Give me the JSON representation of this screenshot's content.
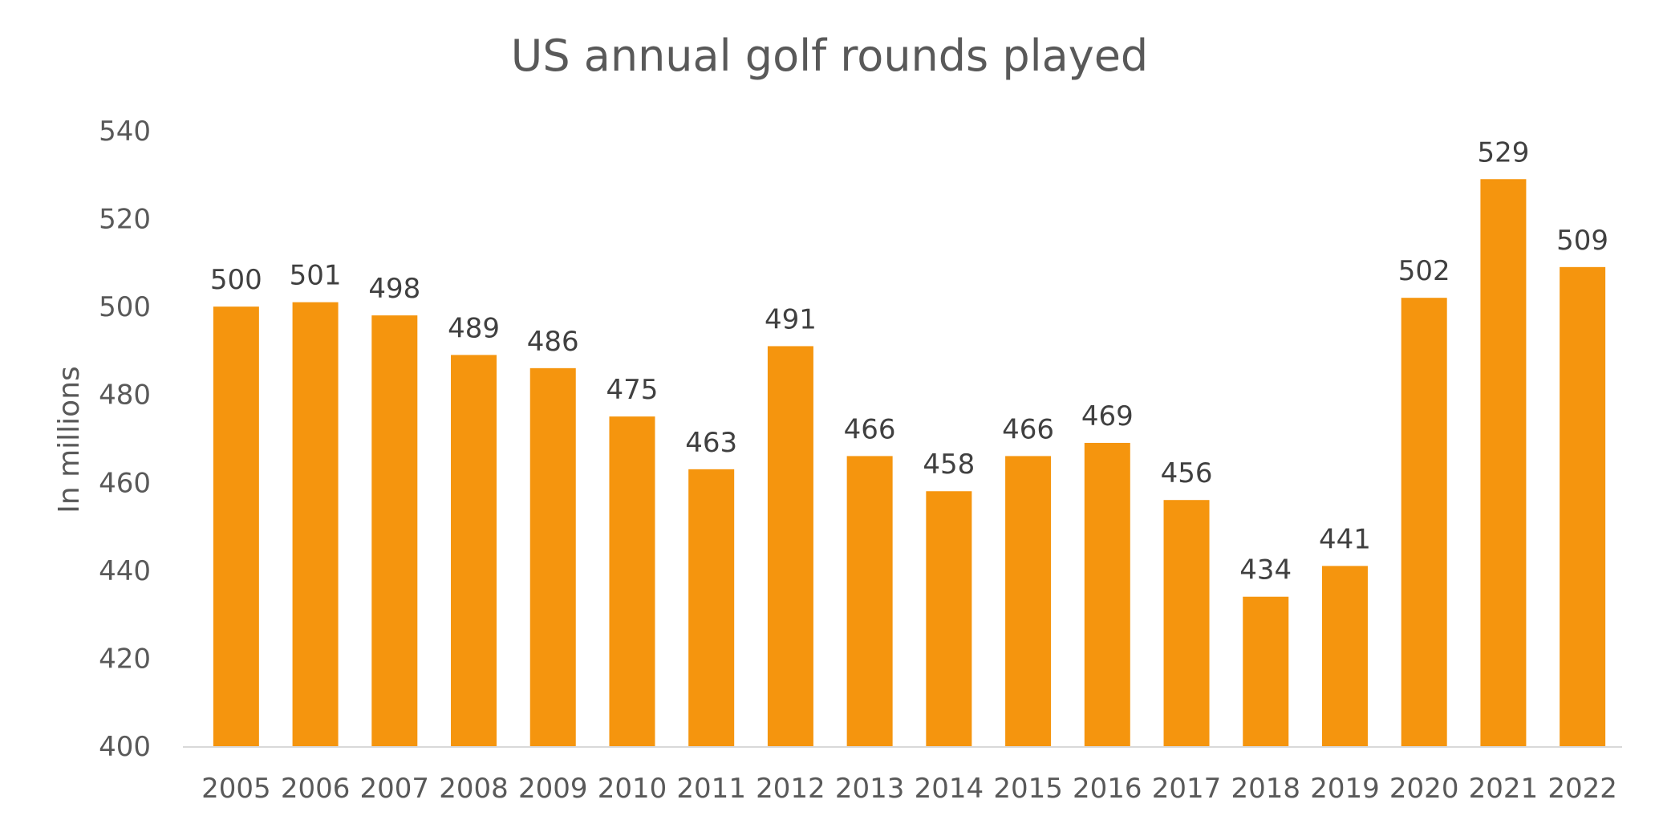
{
  "chart_data": {
    "type": "bar",
    "title": "US annual golf rounds played",
    "xlabel": "",
    "ylabel": "In millions",
    "categories": [
      "2005",
      "2006",
      "2007",
      "2008",
      "2009",
      "2010",
      "2011",
      "2012",
      "2013",
      "2014",
      "2015",
      "2016",
      "2017",
      "2018",
      "2019",
      "2020",
      "2021",
      "2022"
    ],
    "values": [
      500,
      501,
      498,
      489,
      486,
      475,
      463,
      491,
      466,
      458,
      466,
      469,
      456,
      434,
      441,
      502,
      529,
      509
    ],
    "value_labels": [
      "500",
      "501",
      "498",
      "489",
      "486",
      "475",
      "463",
      "491",
      "466",
      "458",
      "466",
      "469",
      "456",
      "434",
      "441",
      "502",
      "529",
      "509"
    ],
    "ylim": [
      400,
      540
    ],
    "yticks": [
      "400",
      "420",
      "440",
      "460",
      "480",
      "500",
      "520",
      "540"
    ],
    "grid": false,
    "legend": "none",
    "colors": {
      "bar": "#F5950E",
      "axis_line": "#D9D9D9",
      "text": "#595959",
      "data_label": "#404040"
    }
  }
}
